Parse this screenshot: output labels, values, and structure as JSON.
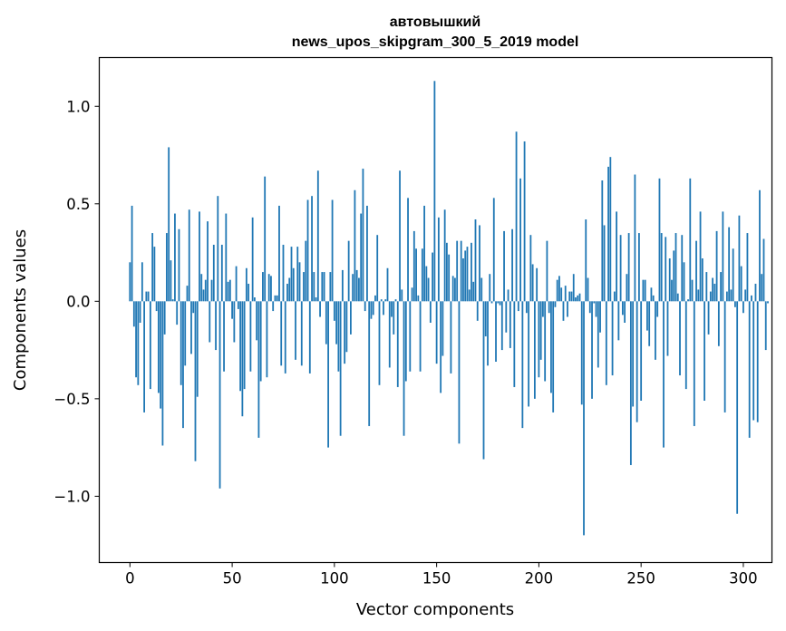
{
  "chart_data": {
    "type": "bar",
    "title": "автовышкий",
    "subtitle": "news_upos_skipgram_300_5_2019 model",
    "xlabel": "Vector components",
    "ylabel": "Components values",
    "xlim": [
      -15,
      314
    ],
    "ylim": [
      -1.34,
      1.25
    ],
    "x_ticks": [
      0,
      50,
      100,
      150,
      200,
      250,
      300
    ],
    "x_tick_labels": [
      "0",
      "50",
      "100",
      "150",
      "200",
      "250",
      "300"
    ],
    "y_ticks": [
      -1.0,
      -0.5,
      0.0,
      0.5,
      1.0
    ],
    "y_tick_labels": [
      "−1.0",
      "−0.5",
      "0.0",
      "0.5",
      "1.0"
    ],
    "grid": false,
    "bar_color": "#1f77b4",
    "values": [
      0.2,
      0.49,
      -0.13,
      -0.39,
      -0.43,
      -0.11,
      0.2,
      -0.57,
      0.05,
      0.05,
      -0.45,
      0.35,
      0.28,
      -0.05,
      -0.47,
      -0.55,
      -0.74,
      -0.17,
      0.35,
      0.79,
      0.21,
      0.01,
      0.45,
      -0.12,
      0.37,
      -0.43,
      -0.65,
      -0.33,
      0.08,
      0.47,
      -0.27,
      -0.06,
      -0.82,
      -0.49,
      0.46,
      0.14,
      0.06,
      0.11,
      0.41,
      -0.21,
      0.11,
      0.29,
      -0.25,
      0.54,
      -0.96,
      0.29,
      -0.36,
      0.45,
      0.1,
      0.11,
      -0.09,
      -0.21,
      0.18,
      -0.04,
      -0.46,
      -0.59,
      -0.45,
      0.17,
      0.09,
      -0.36,
      0.43,
      0.02,
      -0.2,
      -0.7,
      -0.41,
      0.15,
      0.64,
      -0.39,
      0.14,
      0.13,
      -0.05,
      0.03,
      0.03,
      0.49,
      -0.33,
      0.29,
      -0.37,
      0.09,
      0.12,
      0.28,
      0.17,
      -0.3,
      0.28,
      0.2,
      -0.33,
      0.15,
      0.31,
      0.52,
      -0.37,
      0.54,
      0.15,
      0.02,
      0.67,
      -0.08,
      0.15,
      0.15,
      -0.22,
      -0.75,
      0.15,
      0.52,
      -0.1,
      -0.22,
      -0.36,
      -0.69,
      0.16,
      -0.32,
      -0.26,
      0.31,
      -0.17,
      0.14,
      0.57,
      0.16,
      0.12,
      0.45,
      0.68,
      -0.05,
      0.49,
      -0.64,
      -0.09,
      -0.07,
      0.03,
      0.34,
      -0.43,
      0.01,
      -0.07,
      0.01,
      0.17,
      -0.34,
      -0.08,
      -0.17,
      0.01,
      -0.44,
      0.67,
      0.06,
      -0.69,
      -0.41,
      0.53,
      -0.36,
      0.07,
      0.36,
      0.27,
      0.03,
      -0.36,
      0.27,
      0.49,
      0.18,
      0.12,
      -0.11,
      0.25,
      1.13,
      -0.32,
      0.43,
      -0.47,
      -0.28,
      0.47,
      0.3,
      0.24,
      -0.37,
      0.13,
      0.12,
      0.31,
      -0.73,
      0.31,
      0.22,
      0.26,
      0.28,
      0.06,
      0.3,
      0.1,
      0.42,
      -0.1,
      0.39,
      0.12,
      -0.81,
      -0.18,
      -0.33,
      0.14,
      -0.01,
      0.53,
      -0.31,
      -0.01,
      -0.02,
      -0.25,
      0.36,
      -0.16,
      0.06,
      -0.24,
      0.37,
      -0.44,
      0.87,
      -0.05,
      0.63,
      -0.65,
      0.82,
      -0.06,
      -0.54,
      0.34,
      0.19,
      -0.5,
      0.17,
      -0.39,
      -0.3,
      -0.08,
      -0.41,
      0.31,
      -0.06,
      -0.47,
      -0.57,
      -0.03,
      0.11,
      0.13,
      0.07,
      -0.1,
      0.08,
      -0.08,
      0.05,
      0.05,
      0.14,
      0.02,
      0.03,
      0.04,
      -0.53,
      -1.2,
      0.42,
      0.12,
      -0.06,
      -0.5,
      -0.01,
      -0.08,
      -0.34,
      -0.16,
      0.62,
      0.39,
      -0.43,
      0.69,
      0.74,
      -0.38,
      0.05,
      0.46,
      -0.2,
      0.34,
      -0.07,
      -0.11,
      0.14,
      0.35,
      -0.84,
      -0.54,
      0.65,
      -0.62,
      0.35,
      -0.51,
      0.11,
      0.11,
      -0.15,
      -0.23,
      0.07,
      0.03,
      -0.3,
      -0.08,
      0.63,
      0.35,
      -0.75,
      0.33,
      -0.28,
      0.22,
      0.11,
      0.26,
      0.35,
      0.04,
      -0.38,
      0.34,
      0.2,
      -0.45,
      0.01,
      0.63,
      0.11,
      -0.64,
      0.31,
      0.06,
      0.46,
      0.22,
      -0.51,
      0.15,
      -0.17,
      0.05,
      0.12,
      0.09,
      0.36,
      -0.23,
      0.15,
      0.46,
      -0.57,
      0.05,
      0.38,
      0.06,
      0.27,
      -0.03,
      -1.09,
      0.44,
      0.18,
      -0.06,
      0.06,
      0.35,
      -0.7,
      0.03,
      -0.61,
      0.09,
      -0.62,
      0.57,
      0.14,
      0.32,
      -0.25,
      -0.01
    ]
  }
}
